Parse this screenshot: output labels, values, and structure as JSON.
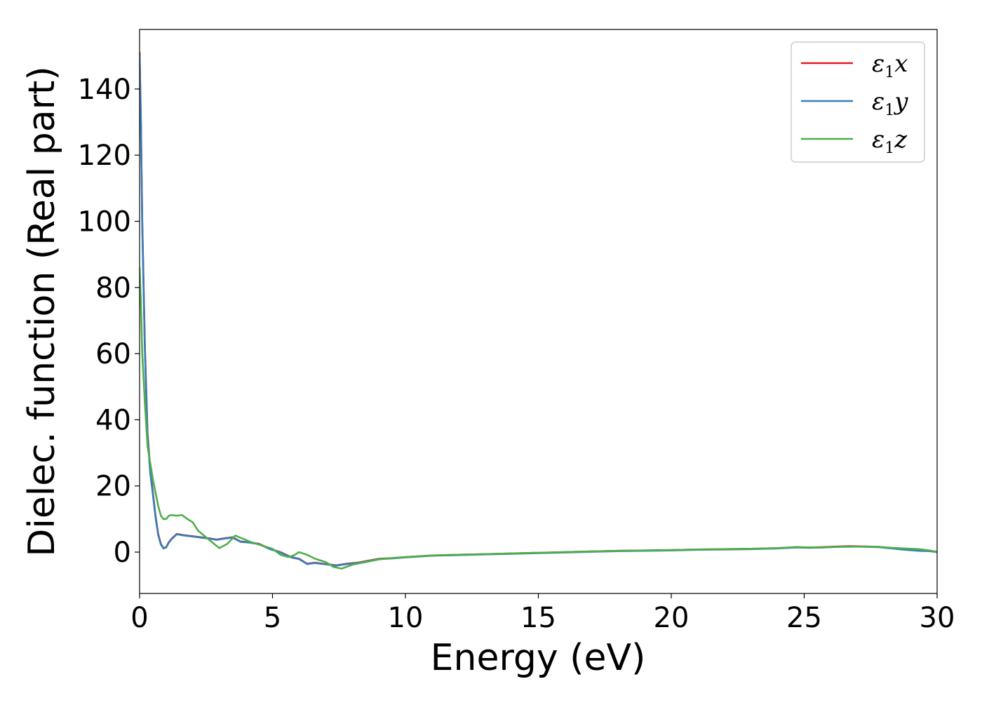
{
  "chart_data": {
    "type": "line",
    "title": "",
    "xlabel": "Energy (eV)",
    "ylabel": "Dielec. function (Real part)",
    "xlim": [
      0,
      30
    ],
    "ylim": [
      -12.5,
      158
    ],
    "xticks": [
      0,
      5,
      10,
      15,
      20,
      25,
      30
    ],
    "yticks": [
      0,
      20,
      40,
      60,
      80,
      100,
      120,
      140
    ],
    "grid": false,
    "legend_position": "top-right",
    "series": [
      {
        "name": "ε1x",
        "legend_main": "ε",
        "legend_sub": "1",
        "legend_suffix": "x",
        "color": "#e41a1c",
        "x": [
          0.0,
          0.05,
          0.1,
          0.2,
          0.3,
          0.4,
          0.5,
          0.6,
          0.7,
          0.8,
          0.9,
          1.0,
          1.1,
          1.2,
          1.4,
          1.6,
          1.8,
          2.0,
          2.3,
          2.6,
          2.9,
          3.2,
          3.5,
          3.8,
          4.1,
          4.5,
          4.9,
          5.3,
          5.7,
          6.0,
          6.3,
          6.6,
          7.0,
          7.4,
          7.8,
          8.2,
          8.6,
          9.0,
          9.5,
          10.0,
          11.0,
          12.0,
          13.0,
          14.0,
          15.0,
          16.0,
          17.0,
          18.0,
          19.0,
          20.0,
          21.0,
          22.0,
          23.0,
          24.0,
          24.7,
          25.2,
          25.7,
          26.3,
          26.7,
          27.3,
          27.8,
          28.3,
          28.8,
          29.3,
          29.7,
          30.0
        ],
        "y": [
          151,
          130,
          100,
          62,
          36,
          25,
          18,
          11,
          5.5,
          2.5,
          1.2,
          1.5,
          3.0,
          4.0,
          5.5,
          5.2,
          5.0,
          4.8,
          4.5,
          4.2,
          3.8,
          4.2,
          4.5,
          3.2,
          3.0,
          2.5,
          1.0,
          0.0,
          -1.5,
          -2.0,
          -3.5,
          -3.2,
          -3.6,
          -4.0,
          -3.5,
          -3.2,
          -2.6,
          -2.0,
          -1.8,
          -1.5,
          -1.0,
          -0.8,
          -0.6,
          -0.4,
          -0.2,
          0.0,
          0.2,
          0.4,
          0.5,
          0.6,
          0.8,
          0.9,
          1.0,
          1.2,
          1.5,
          1.4,
          1.5,
          1.7,
          1.8,
          1.7,
          1.6,
          1.2,
          0.8,
          0.5,
          0.4,
          0.1
        ]
      },
      {
        "name": "ε1y",
        "legend_main": "ε",
        "legend_sub": "1",
        "legend_suffix": "y",
        "color": "#377eb8",
        "x": [
          0.0,
          0.05,
          0.1,
          0.2,
          0.3,
          0.4,
          0.5,
          0.6,
          0.7,
          0.8,
          0.9,
          1.0,
          1.1,
          1.2,
          1.4,
          1.6,
          1.8,
          2.0,
          2.3,
          2.6,
          2.9,
          3.2,
          3.5,
          3.8,
          4.1,
          4.5,
          4.9,
          5.3,
          5.7,
          6.0,
          6.3,
          6.6,
          7.0,
          7.4,
          7.8,
          8.2,
          8.6,
          9.0,
          9.5,
          10.0,
          11.0,
          12.0,
          13.0,
          14.0,
          15.0,
          16.0,
          17.0,
          18.0,
          19.0,
          20.0,
          21.0,
          22.0,
          23.0,
          24.0,
          24.7,
          25.2,
          25.7,
          26.3,
          26.7,
          27.3,
          27.8,
          28.3,
          28.8,
          29.3,
          29.7,
          30.0
        ],
        "y": [
          150,
          129,
          99,
          61,
          35,
          24,
          17.5,
          10.5,
          5.2,
          2.3,
          1.1,
          1.4,
          2.9,
          3.9,
          5.4,
          5.1,
          4.9,
          4.7,
          4.4,
          4.1,
          3.7,
          4.1,
          4.4,
          3.1,
          2.9,
          2.4,
          0.9,
          -0.1,
          -1.6,
          -2.1,
          -3.6,
          -3.3,
          -3.7,
          -4.1,
          -3.6,
          -3.3,
          -2.7,
          -2.1,
          -1.9,
          -1.6,
          -1.1,
          -0.9,
          -0.7,
          -0.5,
          -0.3,
          -0.1,
          0.1,
          0.3,
          0.4,
          0.5,
          0.7,
          0.8,
          0.9,
          1.1,
          1.4,
          1.3,
          1.4,
          1.6,
          1.7,
          1.6,
          1.5,
          1.1,
          0.7,
          0.4,
          0.3,
          0.0
        ]
      },
      {
        "name": "ε1z",
        "legend_main": "ε",
        "legend_sub": "1",
        "legend_suffix": "z",
        "color": "#4daf4a",
        "x": [
          0.0,
          0.05,
          0.1,
          0.2,
          0.3,
          0.4,
          0.5,
          0.6,
          0.7,
          0.8,
          0.9,
          1.0,
          1.1,
          1.2,
          1.4,
          1.6,
          1.8,
          2.0,
          2.2,
          2.5,
          2.8,
          3.0,
          3.3,
          3.6,
          3.9,
          4.2,
          4.6,
          5.0,
          5.3,
          5.6,
          5.8,
          6.0,
          6.3,
          6.6,
          7.0,
          7.3,
          7.6,
          8.0,
          8.5,
          9.0,
          9.5,
          10.0,
          11.0,
          12.0,
          13.0,
          14.0,
          15.0,
          16.0,
          17.0,
          18.0,
          19.0,
          20.0,
          21.0,
          22.0,
          23.0,
          24.0,
          24.7,
          25.2,
          25.7,
          26.3,
          26.7,
          27.3,
          27.8,
          28.3,
          28.8,
          29.3,
          29.7,
          30.0
        ],
        "y": [
          86,
          75,
          60,
          45,
          32,
          27,
          22,
          18,
          14,
          11,
          10,
          10,
          11,
          11.2,
          11.0,
          11.2,
          10,
          9,
          6.5,
          4.5,
          2.5,
          1.2,
          2.5,
          5.0,
          4.0,
          3.0,
          2.0,
          1.0,
          -0.8,
          -1.5,
          -1.0,
          0.0,
          -0.8,
          -2.0,
          -3.0,
          -4.5,
          -5.0,
          -3.8,
          -3.0,
          -2.2,
          -1.8,
          -1.5,
          -1.0,
          -0.8,
          -0.6,
          -0.4,
          -0.2,
          0.0,
          0.2,
          0.4,
          0.5,
          0.6,
          0.8,
          0.9,
          1.0,
          1.2,
          1.5,
          1.4,
          1.4,
          1.6,
          1.6,
          1.7,
          1.6,
          1.3,
          1.1,
          0.9,
          0.5,
          0.1
        ]
      }
    ]
  }
}
